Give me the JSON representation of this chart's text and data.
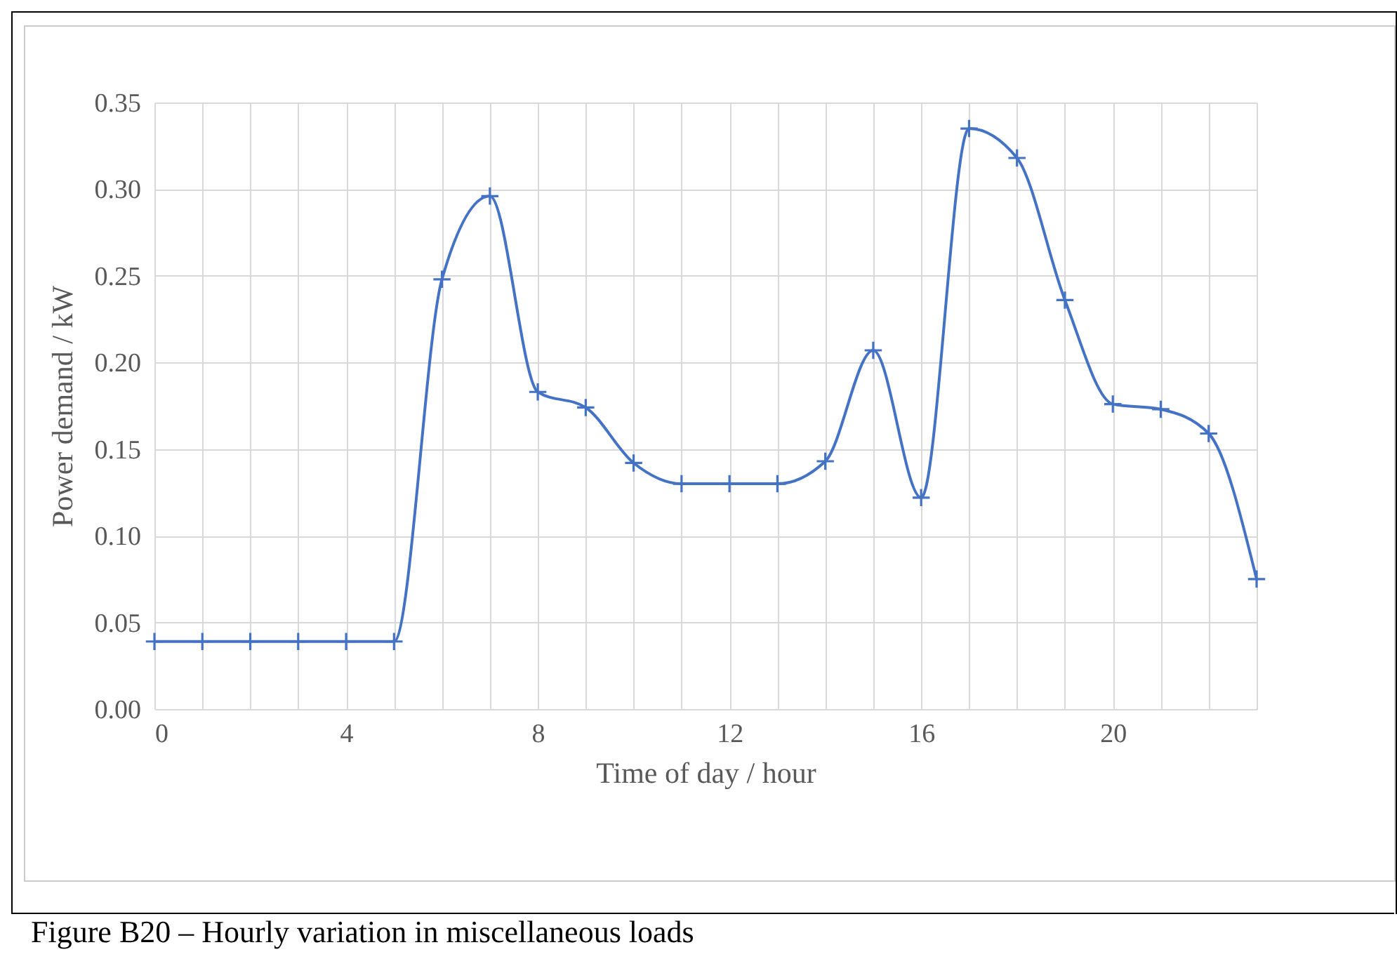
{
  "chart_data": {
    "type": "line",
    "xlabel": "Time of day / hour",
    "ylabel": "Power demand / kW",
    "x": [
      0,
      1,
      2,
      3,
      4,
      5,
      6,
      7,
      8,
      9,
      10,
      11,
      12,
      13,
      14,
      15,
      16,
      17,
      18,
      19,
      20,
      21,
      22,
      23
    ],
    "series": [
      {
        "color": "#4472c4",
        "values": [
          0.039,
          0.039,
          0.039,
          0.039,
          0.039,
          0.039,
          0.248,
          0.296,
          0.183,
          0.174,
          0.142,
          0.13,
          0.13,
          0.13,
          0.143,
          0.207,
          0.122,
          0.335,
          0.318,
          0.236,
          0.176,
          0.173,
          0.159,
          0.075
        ]
      }
    ],
    "xlim": [
      0,
      23
    ],
    "xticks": [
      0,
      {
        "value": 1,
        "label": null
      },
      {
        "value": 2,
        "label": null
      },
      {
        "value": 3,
        "label": null
      },
      4,
      {
        "value": 5,
        "label": null
      },
      {
        "value": 6,
        "label": null
      },
      {
        "value": 7,
        "label": null
      },
      8,
      {
        "value": 9,
        "label": null
      },
      {
        "value": 10,
        "label": null
      },
      {
        "value": 11,
        "label": null
      },
      12,
      {
        "value": 13,
        "label": null
      },
      {
        "value": 14,
        "label": null
      },
      {
        "value": 15,
        "label": null
      },
      16,
      {
        "value": 17,
        "label": null
      },
      {
        "value": 18,
        "label": null
      },
      {
        "value": 19,
        "label": null
      },
      20,
      {
        "value": 21,
        "label": null
      },
      {
        "value": 22,
        "label": null
      },
      {
        "value": 23,
        "label": null
      }
    ],
    "ylim": [
      0,
      0.35
    ],
    "yticks": [
      {
        "value": 0,
        "label": "0.00"
      },
      {
        "value": 0.05,
        "label": "0.05"
      },
      {
        "value": 0.1,
        "label": "0.10"
      },
      {
        "value": 0.15,
        "label": "0.15"
      },
      {
        "value": 0.2,
        "label": "0.20"
      },
      {
        "value": 0.25,
        "label": "0.25"
      },
      {
        "value": 0.3,
        "label": "0.30"
      },
      {
        "value": 0.35,
        "label": "0.35"
      }
    ],
    "grid": true,
    "marker": "cross",
    "line_style": "solid",
    "annotations": [
      "Figure B20 – Hourly variation in miscellaneous loads"
    ]
  }
}
